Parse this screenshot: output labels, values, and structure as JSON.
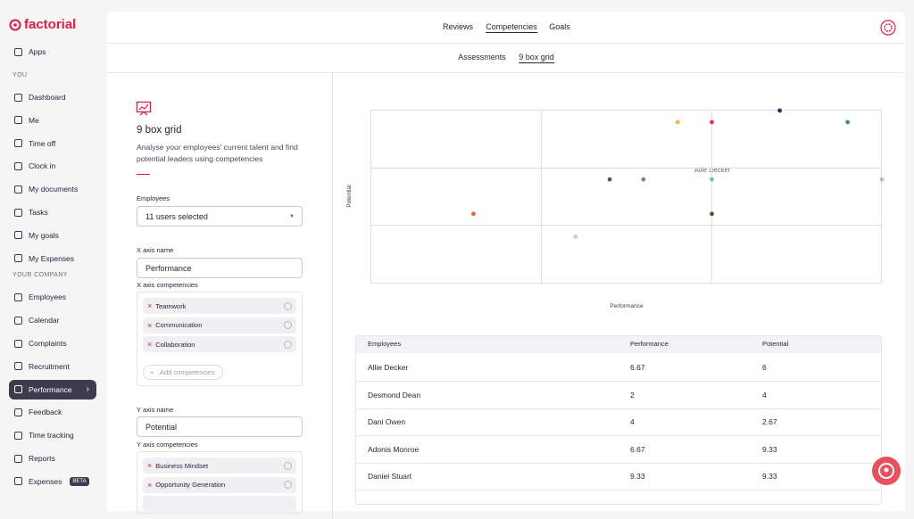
{
  "sidebar": {
    "logo": "factorial",
    "apps": "Apps",
    "sections": [
      {
        "title": "YOU",
        "items": [
          {
            "label": "Dashboard"
          },
          {
            "label": "Me"
          },
          {
            "label": "Time off"
          },
          {
            "label": "Clock in"
          },
          {
            "label": "My documents"
          },
          {
            "label": "Tasks"
          },
          {
            "label": "My goals"
          },
          {
            "label": "My Expenses"
          }
        ]
      },
      {
        "title": "YOUR COMPANY",
        "items": [
          {
            "label": "Employees"
          },
          {
            "label": "Calendar"
          },
          {
            "label": "Complaints"
          },
          {
            "label": "Recruitment"
          },
          {
            "label": "Performance",
            "active": true
          },
          {
            "label": "Feedback"
          },
          {
            "label": "Time tracking"
          },
          {
            "label": "Reports"
          },
          {
            "label": "Expenses",
            "badge": "BETA"
          }
        ]
      }
    ]
  },
  "tabs": [
    {
      "label": "Reviews"
    },
    {
      "label": "Competencies",
      "active": true
    },
    {
      "label": "Goals"
    }
  ],
  "subtabs": [
    {
      "label": "Assessments"
    },
    {
      "label": "9 box grid",
      "active": true
    }
  ],
  "panel": {
    "title": "9 box grid",
    "description": "Analyse your employees' current talent and find potential leaders using competencies",
    "employees_label": "Employees",
    "employees_value": "11 users selected",
    "x_axis_name_label": "X axis name",
    "x_axis_name": "Performance",
    "x_axis_competencies_label": "X axis competencies",
    "x_axis_competencies": [
      "Teamwork",
      "Communication",
      "Collaboration"
    ],
    "add_competencies": "Add competencies",
    "y_axis_name_label": "Y axis name",
    "y_axis_name": "Potential",
    "y_axis_competencies_label": "Y axis competencies",
    "y_axis_competencies": [
      "Business Mindset",
      "Opportunity Generation"
    ]
  },
  "chart_data": {
    "type": "scatter",
    "xlabel": "Performance",
    "ylabel": "Potential",
    "tooltip": "Allie Decker",
    "xlim": [
      0,
      10
    ],
    "ylim": [
      0,
      10
    ],
    "x": [
      2,
      4,
      4.67,
      5.33,
      6,
      6.67,
      6.67,
      6.67,
      8,
      9.33,
      10
    ],
    "values": [
      4,
      2.67,
      6,
      6,
      9.33,
      9.33,
      6,
      4,
      10,
      9.33,
      6
    ],
    "colors": [
      "#f0622d",
      "#c8d8a8",
      "#5a5a5a",
      "#a0785a",
      "#f6b73c",
      "#e8384f",
      "#5bc8c8",
      "#5a5230",
      "#253858",
      "#2e9e5b",
      "#9cc8e0"
    ]
  },
  "table": {
    "columns": [
      "Employees",
      "Performance",
      "Potential"
    ],
    "rows": [
      [
        "Allie Decker",
        "6.67",
        "6"
      ],
      [
        "Desmond Dean",
        "2",
        "4"
      ],
      [
        "Dani Owen",
        "4",
        "2.67"
      ],
      [
        "Adonis Monroe",
        "6.67",
        "9.33"
      ],
      [
        "Daniel Stuart",
        "9.33",
        "9.33"
      ]
    ]
  }
}
